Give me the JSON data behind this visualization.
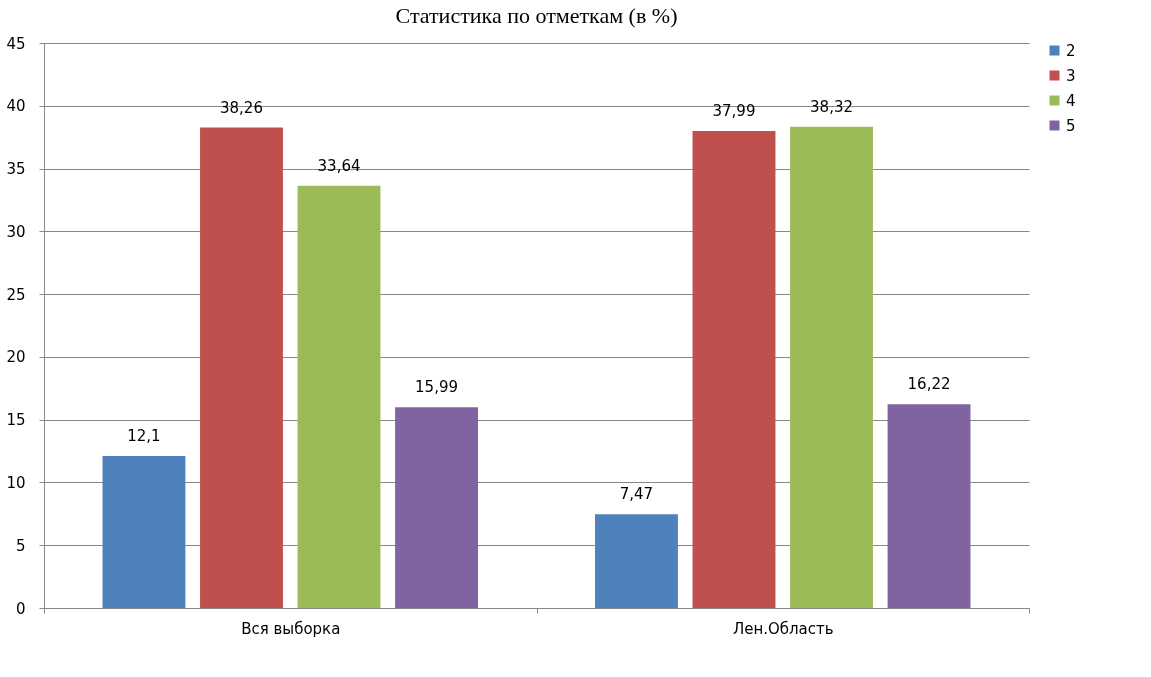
{
  "chart_data": {
    "type": "bar",
    "title": "Статистика по отметкам (в %)",
    "categories": [
      "Вся выборка",
      "Лен.Область"
    ],
    "series": [
      {
        "name": "2",
        "color": "#4f81bd",
        "values": [
          12.1,
          7.47
        ],
        "value_labels": [
          "12,1",
          "7,47"
        ]
      },
      {
        "name": "3",
        "color": "#c0504d",
        "values": [
          38.26,
          37.99
        ],
        "value_labels": [
          "38,26",
          "37,99"
        ]
      },
      {
        "name": "4",
        "color": "#9bbb59",
        "values": [
          33.64,
          38.32
        ],
        "value_labels": [
          "33,64",
          "38,32"
        ]
      },
      {
        "name": "5",
        "color": "#8064a2",
        "values": [
          15.99,
          16.22
        ],
        "value_labels": [
          "15,99",
          "16,22"
        ]
      }
    ],
    "ylim": [
      0,
      45
    ],
    "yticks": [
      0,
      5,
      10,
      15,
      20,
      25,
      30,
      35,
      40,
      45
    ],
    "grid": "y",
    "legend": "right"
  }
}
